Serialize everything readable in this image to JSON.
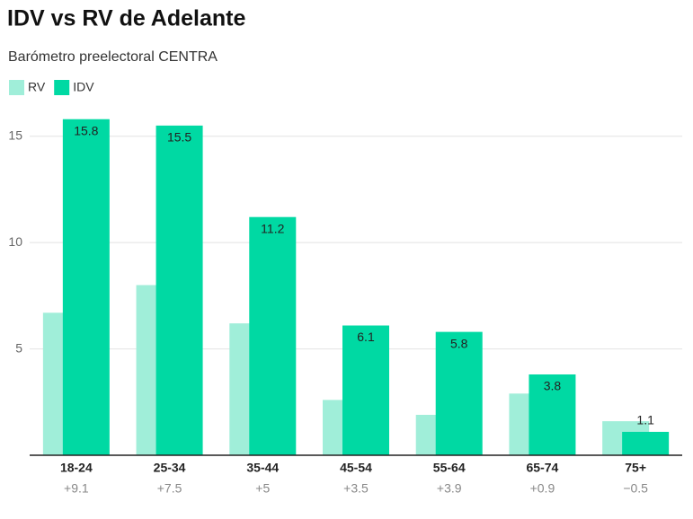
{
  "chart_data": {
    "type": "bar",
    "title": "IDV vs RV de Adelante",
    "subtitle": "Barómetro preelectoral CENTRA",
    "categories": [
      "18-24",
      "25-34",
      "35-44",
      "45-54",
      "55-64",
      "65-74",
      "75+"
    ],
    "category_sublabels": [
      "+9.1",
      "+7.5",
      "+5",
      "+3.5",
      "+3.9",
      "+0.9",
      "−0.5"
    ],
    "series": [
      {
        "name": "RV",
        "color": "#a0eed9",
        "values": [
          6.7,
          8.0,
          6.2,
          2.6,
          1.9,
          2.9,
          1.6
        ]
      },
      {
        "name": "IDV",
        "color": "#00d9a3",
        "values": [
          15.8,
          15.5,
          11.2,
          6.1,
          5.8,
          3.8,
          1.1
        ]
      }
    ],
    "ylim": [
      0,
      16
    ],
    "yticks": [
      5,
      10,
      15
    ],
    "grid": true,
    "legend": "top-left"
  }
}
